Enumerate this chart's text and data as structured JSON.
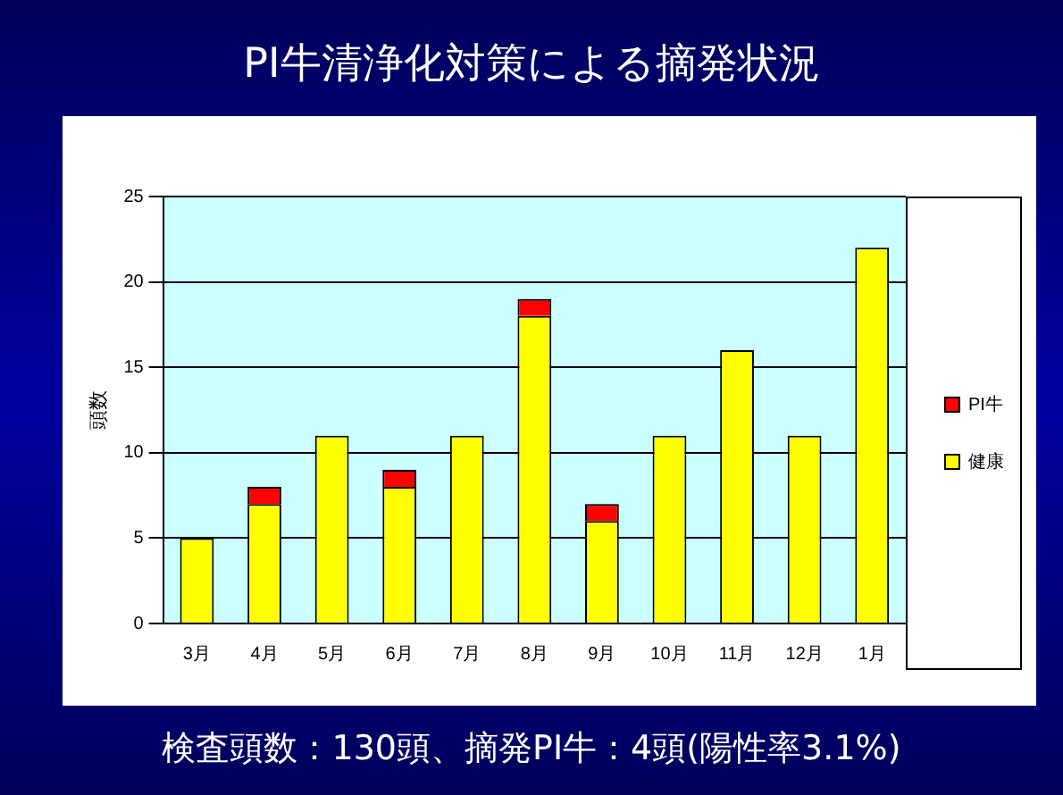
{
  "chart_data": {
    "type": "bar",
    "title": "PI牛清浄化対策による摘発状況",
    "ylabel": "頭数",
    "categories": [
      "3月",
      "4月",
      "5月",
      "6月",
      "7月",
      "8月",
      "9月",
      "10月",
      "11月",
      "12月",
      "1月"
    ],
    "series": [
      {
        "name": "健康",
        "color": "#ffff00",
        "values": [
          5,
          7,
          11,
          8,
          11,
          18,
          6,
          11,
          16,
          11,
          22
        ]
      },
      {
        "name": "PI牛",
        "color": "#ff0000",
        "values": [
          0,
          1,
          0,
          1,
          0,
          1,
          1,
          0,
          0,
          0,
          0
        ]
      }
    ],
    "stacked": true,
    "ylim": [
      0,
      25
    ],
    "yticks": [
      0,
      5,
      10,
      15,
      20,
      25
    ],
    "grid": "y",
    "legend": "right",
    "annotations": [
      "検査頭数：130頭、摘発PI牛：4頭(陽性率3.1%)"
    ]
  }
}
